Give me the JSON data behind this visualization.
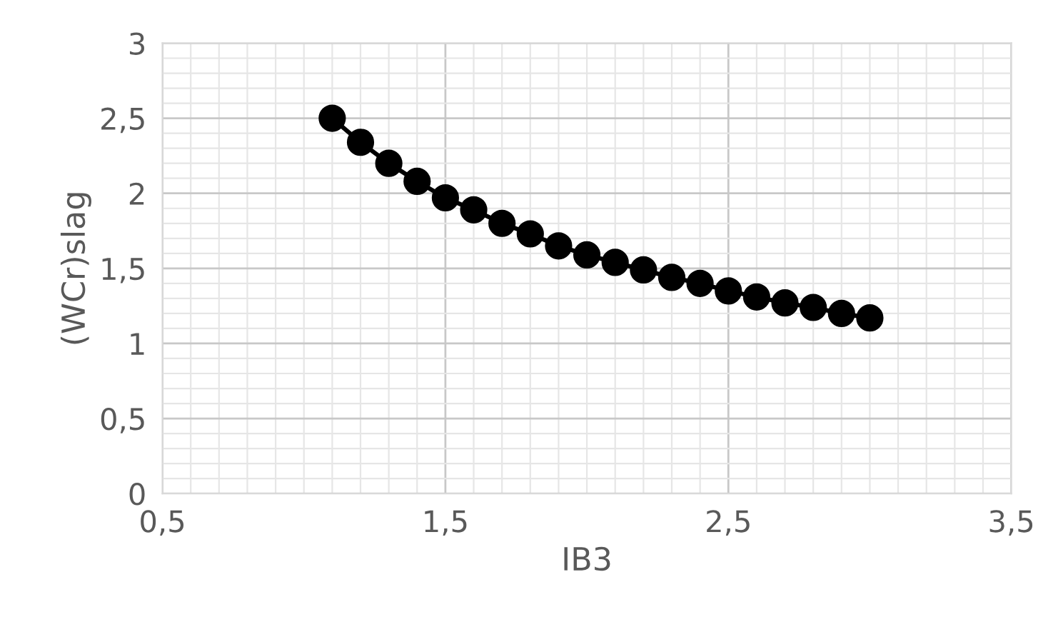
{
  "chart_data": {
    "type": "line",
    "xlabel": "IB3",
    "ylabel": "(WCr)slag",
    "x": [
      1.1,
      1.2,
      1.3,
      1.4,
      1.5,
      1.6,
      1.7,
      1.8,
      1.9,
      2.0,
      2.1,
      2.2,
      2.3,
      2.4,
      2.5,
      2.6,
      2.7,
      2.8,
      2.9,
      3.0
    ],
    "series": [
      {
        "color": "#000000",
        "values": [
          2.5,
          2.34,
          2.2,
          2.08,
          1.97,
          1.89,
          1.8,
          1.73,
          1.65,
          1.59,
          1.54,
          1.49,
          1.44,
          1.4,
          1.35,
          1.31,
          1.27,
          1.24,
          1.2,
          1.17
        ]
      }
    ],
    "marker": "circle",
    "line_style": "solid",
    "grid": true,
    "xlim": [
      0.5,
      3.5
    ],
    "xticks": [
      {
        "value": 0.5,
        "label": "0,5"
      },
      {
        "value": 1.5,
        "label": "1,5"
      },
      {
        "value": 2.5,
        "label": "2,5"
      },
      {
        "value": 3.5,
        "label": "3,5"
      }
    ],
    "ylim": [
      0,
      3
    ],
    "yticks": [
      0,
      {
        "value": 0.5,
        "label": "0,5"
      },
      1,
      {
        "value": 1.5,
        "label": "1,5"
      },
      2,
      {
        "value": 2.5,
        "label": "2,5"
      },
      3
    ]
  }
}
